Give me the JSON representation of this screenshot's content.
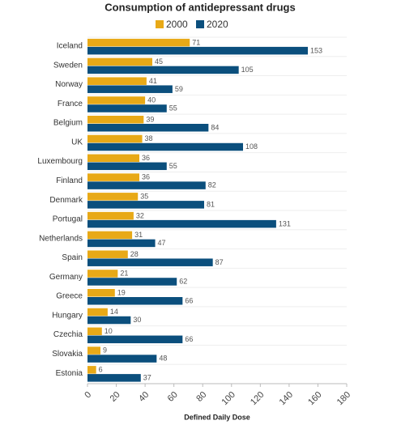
{
  "chart_data": {
    "type": "bar",
    "orientation": "horizontal",
    "title": "Consumption of antidepressant drugs",
    "x_label": "Defined Daily Dose",
    "categories": [
      "Iceland",
      "Sweden",
      "Norway",
      "France",
      "Belgium",
      "UK",
      "Luxembourg",
      "Finland",
      "Denmark",
      "Portugal",
      "Netherlands",
      "Spain",
      "Germany",
      "Greece",
      "Hungary",
      "Czechia",
      "Slovakia",
      "Estonia"
    ],
    "series": [
      {
        "name": "2000",
        "color": "#e8a917",
        "values": [
          71,
          45,
          41,
          40,
          39,
          38,
          36,
          36,
          35,
          32,
          31,
          28,
          21,
          19,
          14,
          10,
          9,
          6
        ]
      },
      {
        "name": "2020",
        "color": "#0b4f7d",
        "values": [
          153,
          105,
          59,
          55,
          84,
          108,
          55,
          82,
          81,
          131,
          47,
          87,
          62,
          66,
          30,
          66,
          48,
          37
        ]
      }
    ],
    "xlim": [
      0,
      180
    ],
    "xticks": [
      0,
      20,
      40,
      60,
      80,
      100,
      120,
      140,
      160,
      180
    ],
    "legend": "top"
  }
}
